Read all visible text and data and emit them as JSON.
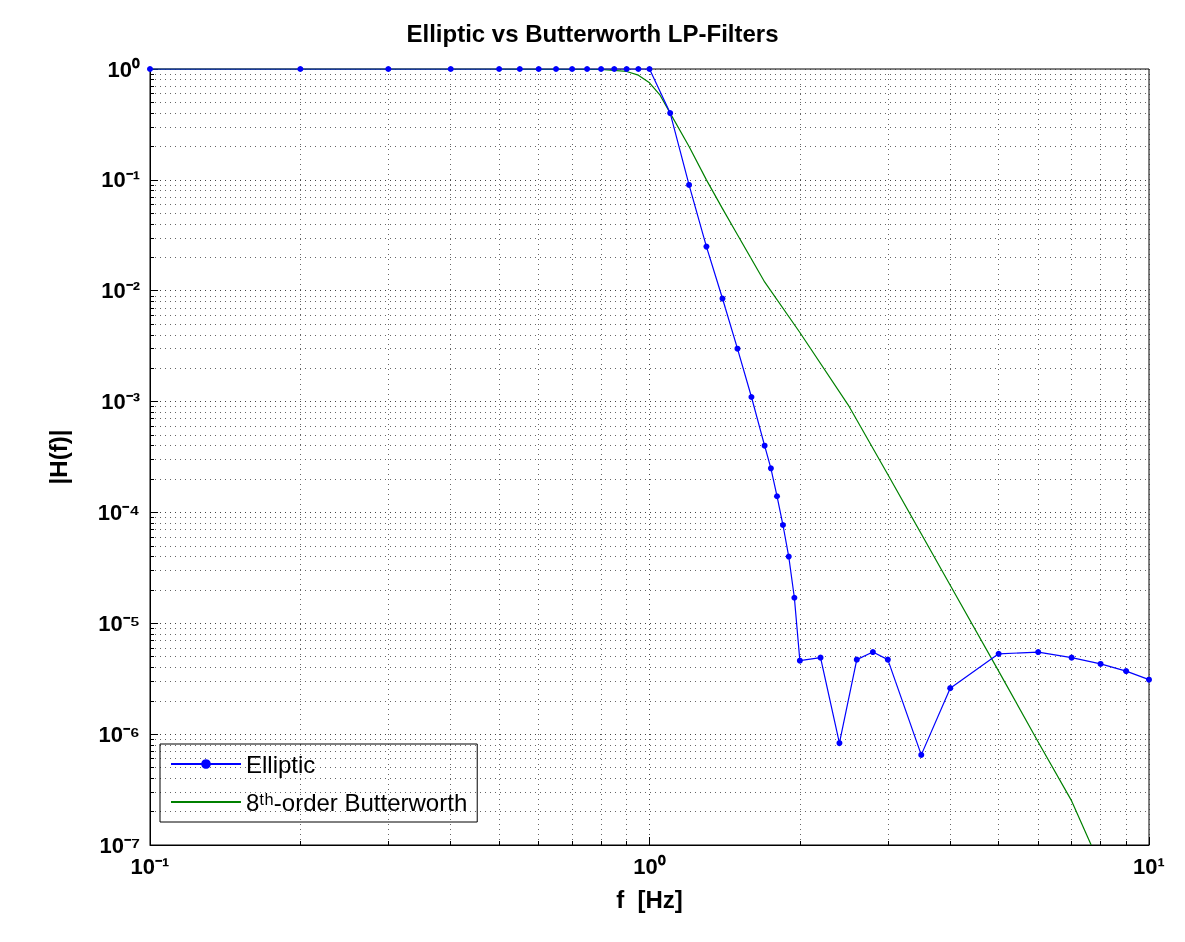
{
  "chart_data": {
    "type": "line",
    "title": "Elliptic vs Butterworth LP-Filters",
    "xlabel": "f  [Hz]",
    "ylabel": "|H(f)|",
    "log": "xy",
    "xlim": [
      0.1,
      10
    ],
    "ylim": [
      1e-07,
      1
    ],
    "xticks": [
      {
        "value": 0.1,
        "label": "10⁻¹"
      },
      {
        "value": 1,
        "label": "10⁰"
      },
      {
        "value": 10,
        "label": "10¹"
      }
    ],
    "yticks": [
      {
        "value": 1e-07,
        "label": "10⁻⁷"
      },
      {
        "value": 1e-06,
        "label": "10⁻⁶"
      },
      {
        "value": 1e-05,
        "label": "10⁻⁵"
      },
      {
        "value": 0.0001,
        "label": "10⁻⁴"
      },
      {
        "value": 0.001,
        "label": "10⁻³"
      },
      {
        "value": 0.01,
        "label": "10⁻²"
      },
      {
        "value": 0.1,
        "label": "10⁻¹"
      },
      {
        "value": 1,
        "label": "10⁰"
      }
    ],
    "grid": true,
    "legend": "bottom left",
    "series": [
      {
        "name": "Elliptic",
        "color": "#0000ff",
        "marker": "circle",
        "x": [
          0.1,
          0.2,
          0.3,
          0.4,
          0.5,
          0.55,
          0.6,
          0.65,
          0.7,
          0.75,
          0.8,
          0.85,
          0.9,
          0.95,
          1.0,
          1.1,
          1.2,
          1.3,
          1.4,
          1.5,
          1.6,
          1.7,
          1.75,
          1.8,
          1.85,
          1.9,
          1.95,
          2.0,
          2.2,
          2.4,
          2.6,
          2.8,
          3.0,
          3.5,
          4,
          5,
          6,
          7,
          8,
          9,
          10
        ],
        "values": [
          1,
          1,
          1,
          1,
          1,
          1,
          1,
          1,
          1,
          1,
          1,
          1,
          1,
          1,
          1,
          0.4,
          0.09,
          0.025,
          0.0085,
          0.003,
          0.0011,
          0.0004,
          0.00025,
          0.00014,
          7.7e-05,
          4e-05,
          1.7e-05,
          4.6e-06,
          4.9e-06,
          8.3e-07,
          4.7e-06,
          5.5e-06,
          4.7e-06,
          6.5e-07,
          2.6e-06,
          5.3e-06,
          5.5e-06,
          4.9e-06,
          4.3e-06,
          3.7e-06,
          3.1e-06
        ]
      },
      {
        "name": "8ᵗʰ-order Butterworth",
        "color": "#008000",
        "marker": "none",
        "x": [
          0.1,
          0.5,
          0.8,
          0.9,
          0.95,
          1.0,
          1.05,
          1.1,
          1.2,
          1.3,
          1.4,
          1.5,
          1.7,
          2.0,
          2.5,
          3,
          4,
          5,
          6,
          7,
          7.66
        ],
        "values": [
          1,
          1,
          0.99,
          0.95,
          0.88,
          0.75,
          0.58,
          0.4,
          0.2,
          0.1,
          0.055,
          0.032,
          0.012,
          0.0042,
          0.00093,
          0.00022,
          2.2e-05,
          3.7e-06,
          8.5e-07,
          2.5e-07,
          1e-07
        ]
      }
    ]
  }
}
